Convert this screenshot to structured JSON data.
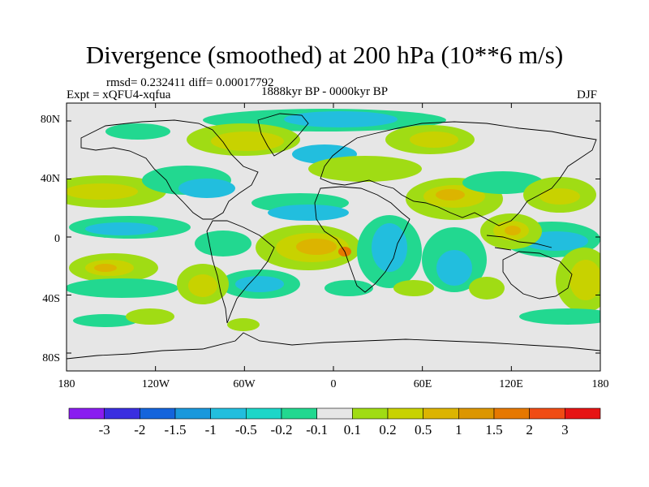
{
  "title": "Divergence (smoothed) at 200 hPa (10**6 m/s)",
  "stats_line": "rmsd= 0.232411 diff= 0.00017792",
  "experiment": "Expt = xQFU4-xqfua",
  "period": "1888kyr BP - 0000kyr BP",
  "season": "DJF",
  "axes": {
    "lat_labels": [
      "80N",
      "40N",
      "0",
      "40S",
      "80S"
    ],
    "lon_labels": [
      "180",
      "120W",
      "60W",
      "0",
      "60E",
      "120E",
      "180"
    ]
  },
  "colorbar": {
    "colors": [
      "#8a1cf0",
      "#3a2ee0",
      "#1464dc",
      "#1a98dc",
      "#22bede",
      "#1cd6c8",
      "#22d890",
      "#e6e6e6",
      "#a0dc14",
      "#c8d200",
      "#dcb400",
      "#dc9600",
      "#e67800",
      "#f04c14",
      "#e61414"
    ],
    "labels": [
      "-3",
      "-2",
      "-1.5",
      "-1",
      "-0.5",
      "-0.2",
      "-0.1",
      "0.1",
      "0.2",
      "0.5",
      "1",
      "1.5",
      "2",
      "3"
    ]
  },
  "map_colors": {
    "background": "#e6e6e6",
    "neg_light": "#22d890",
    "neg_mid": "#22bede",
    "neg_strong": "#1a98dc",
    "pos_light": "#a0dc14",
    "pos_mid": "#c8d200",
    "pos_strong": "#dcb400",
    "pos_peak": "#e67800",
    "coast": "#000000"
  }
}
